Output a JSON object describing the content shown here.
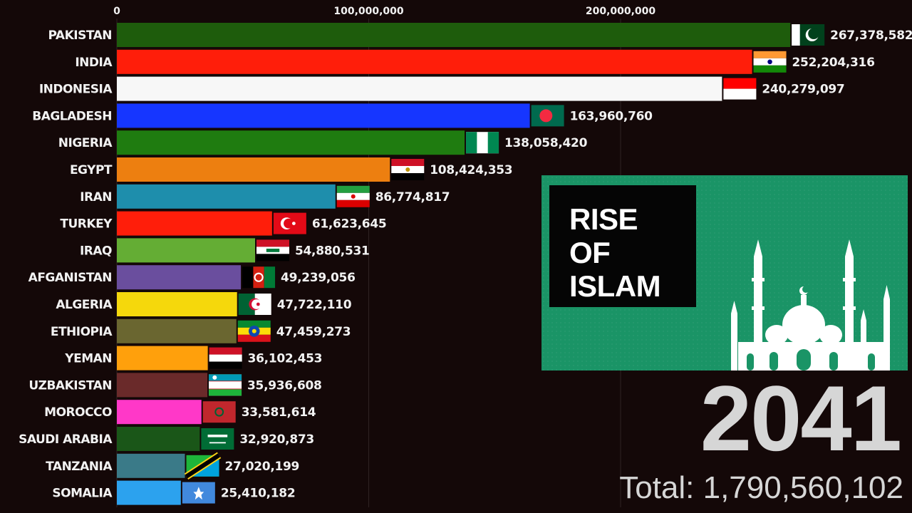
{
  "chart_data": {
    "type": "bar",
    "orientation": "horizontal",
    "categories": [
      "PAKISTAN",
      "INDIA",
      "INDONESIA",
      "BAGLADESH",
      "NIGERIA",
      "EGYPT",
      "IRAN",
      "TURKEY",
      "IRAQ",
      "AFGANISTAN",
      "ALGERIA",
      "ETHIOPIA",
      "YEMAN",
      "UZBAKISTAN",
      "MOROCCO",
      "SAUDI ARABIA",
      "TANZANIA",
      "SOMALIA"
    ],
    "values": [
      267378582,
      252204316,
      240279097,
      163960760,
      138058420,
      108424353,
      86774817,
      61623645,
      54880531,
      49239056,
      47722110,
      47459273,
      36102453,
      35936608,
      33581614,
      32920873,
      27020199,
      25410182
    ],
    "value_labels": [
      "267,378,582",
      "252,204,316",
      "240,279,097",
      "163,960,760",
      "138,058,420",
      "108,424,353",
      "86,774,817",
      "61,623,645",
      "54,880,531",
      "49,239,056",
      "47,722,110",
      "47,459,273",
      "36,102,453",
      "35,936,608",
      "33,581,614",
      "32,920,873",
      "27,020,199",
      "25,410,182"
    ],
    "bar_colors": [
      "#1e5c0c",
      "#ff1e0a",
      "#f7f7f7",
      "#1636ff",
      "#1f7c10",
      "#ed7f10",
      "#1e8eac",
      "#ff1e0a",
      "#64ad34",
      "#6a4e9e",
      "#f5d80c",
      "#6a6630",
      "#ffa00c",
      "#6a2a2a",
      "#ff38c8",
      "#1a5618",
      "#3a7a88",
      "#2ca2ee"
    ],
    "flag_icons": [
      "pakistan-flag",
      "india-flag",
      "indonesia-flag",
      "bangladesh-flag",
      "nigeria-flag",
      "egypt-flag",
      "iran-flag",
      "turkey-flag",
      "iraq-flag",
      "afghanistan-flag",
      "algeria-flag",
      "ethiopia-flag",
      "yemen-flag",
      "uzbekistan-flag",
      "morocco-flag",
      "saudi-arabia-flag",
      "tanzania-flag",
      "somalia-flag"
    ],
    "x_ticks": [
      0,
      100000000,
      200000000
    ],
    "x_tick_labels": [
      "0",
      "100,000,000",
      "200,000,000"
    ],
    "xlim": [
      0,
      270000000
    ],
    "grid": true,
    "year": "2041",
    "total_label": "Total: 1,790,560,102"
  },
  "banner": {
    "title_lines": [
      "RISE",
      "OF",
      "ISLAM"
    ],
    "background_color": "#1a9466",
    "icon": "mosque-icon"
  }
}
